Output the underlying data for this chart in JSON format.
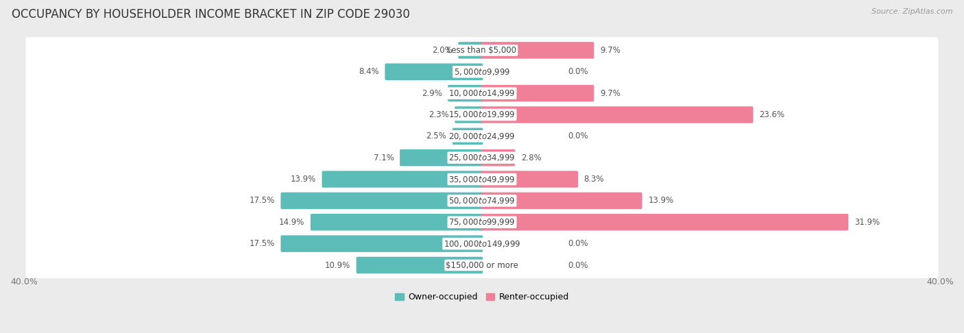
{
  "title": "OCCUPANCY BY HOUSEHOLDER INCOME BRACKET IN ZIP CODE 29030",
  "source": "Source: ZipAtlas.com",
  "categories": [
    "Less than $5,000",
    "$5,000 to $9,999",
    "$10,000 to $14,999",
    "$15,000 to $19,999",
    "$20,000 to $24,999",
    "$25,000 to $34,999",
    "$35,000 to $49,999",
    "$50,000 to $74,999",
    "$75,000 to $99,999",
    "$100,000 to $149,999",
    "$150,000 or more"
  ],
  "owner_values": [
    2.0,
    8.4,
    2.9,
    2.3,
    2.5,
    7.1,
    13.9,
    17.5,
    14.9,
    17.5,
    10.9
  ],
  "renter_values": [
    9.7,
    0.0,
    9.7,
    23.6,
    0.0,
    2.8,
    8.3,
    13.9,
    31.9,
    0.0,
    0.0
  ],
  "owner_color": "#5bbcb8",
  "renter_color": "#f08098",
  "axis_max": 40.0,
  "bg_color": "#ebebeb",
  "bar_bg_color": "#ffffff",
  "title_fontsize": 12,
  "label_fontsize": 8.5,
  "axis_label_fontsize": 9,
  "legend_fontsize": 9,
  "source_fontsize": 8
}
